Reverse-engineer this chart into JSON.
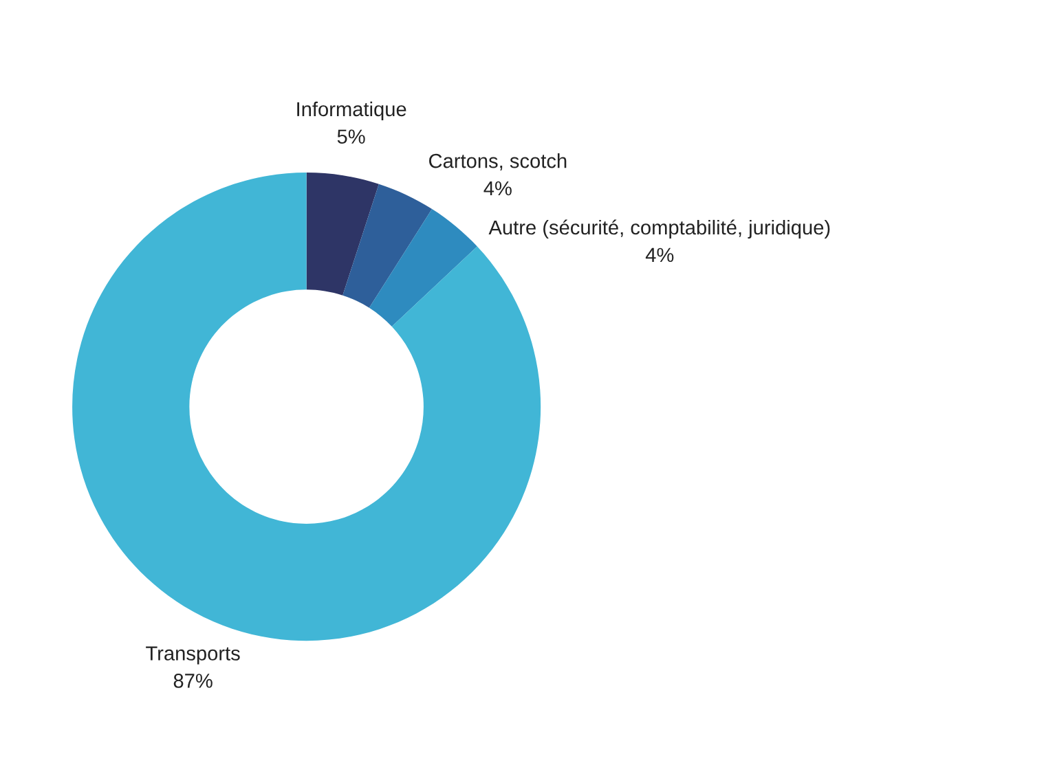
{
  "chart_data": {
    "type": "donut",
    "categories": [
      "Informatique",
      "Cartons, scotch",
      "Autre (sécurité, comptabilité, juridique)",
      "Transports"
    ],
    "values": [
      5,
      4,
      4,
      87
    ],
    "colors": [
      "#2e3566",
      "#2e5f9a",
      "#2e8bbf",
      "#41b6d6"
    ],
    "value_labels": [
      "5%",
      "4%",
      "4%",
      "87%"
    ],
    "legend": false
  }
}
